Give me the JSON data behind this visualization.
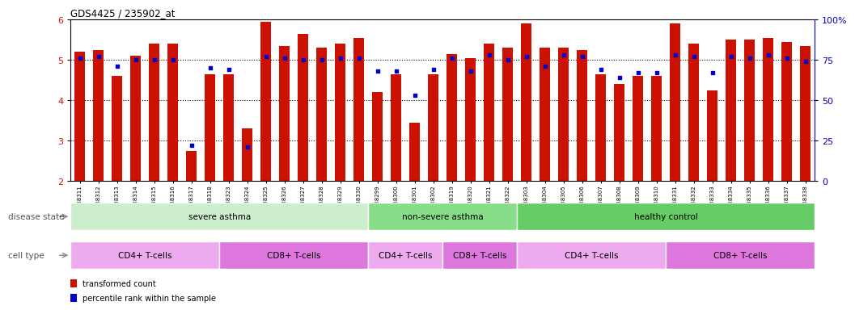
{
  "title": "GDS4425 / 235902_at",
  "sample_labels": [
    "GSM788311",
    "GSM788312",
    "GSM788313",
    "GSM788314",
    "GSM788315",
    "GSM788316",
    "GSM788317",
    "GSM788318",
    "GSM788323",
    "GSM788324",
    "GSM788325",
    "GSM788326",
    "GSM788327",
    "GSM788328",
    "GSM788329",
    "GSM788330",
    "GSM788299",
    "GSM788300",
    "GSM788301",
    "GSM788302",
    "GSM788319",
    "GSM788320",
    "GSM788321",
    "GSM788322",
    "GSM788303",
    "GSM788304",
    "GSM788305",
    "GSM788306",
    "GSM788307",
    "GSM788308",
    "GSM788309",
    "GSM788310",
    "GSM788331",
    "GSM788332",
    "GSM788333",
    "GSM788334",
    "GSM788335",
    "GSM788336",
    "GSM788337",
    "GSM788338"
  ],
  "bar_values": [
    5.2,
    5.25,
    4.6,
    5.1,
    5.4,
    5.4,
    2.75,
    4.65,
    4.65,
    3.3,
    5.95,
    5.35,
    5.65,
    5.3,
    5.4,
    5.55,
    4.2,
    4.65,
    3.45,
    4.65,
    5.15,
    5.05,
    5.4,
    5.3,
    5.9,
    5.3,
    5.3,
    5.25,
    4.65,
    4.4,
    4.6,
    4.6,
    5.9,
    5.4,
    4.25,
    5.5,
    5.5,
    5.55,
    5.45,
    5.35
  ],
  "dot_values": [
    76,
    77,
    71,
    75,
    75,
    75,
    22,
    70,
    69,
    21,
    77,
    76,
    75,
    75,
    76,
    76,
    68,
    68,
    53,
    69,
    76,
    68,
    78,
    75,
    77,
    71,
    78,
    77,
    69,
    64,
    67,
    67,
    78,
    77,
    67,
    77,
    76,
    78,
    76,
    74
  ],
  "ylim_left": [
    2,
    6
  ],
  "ylim_right": [
    0,
    100
  ],
  "yticks_left": [
    2,
    3,
    4,
    5,
    6
  ],
  "yticks_right": [
    0,
    25,
    50,
    75,
    100
  ],
  "bar_color": "#cc1100",
  "dot_color": "#0000cc",
  "disease_groups": [
    {
      "label": "severe asthma",
      "start": 0,
      "end": 16,
      "color": "#cceecc"
    },
    {
      "label": "non-severe asthma",
      "start": 16,
      "end": 24,
      "color": "#88dd88"
    },
    {
      "label": "healthy control",
      "start": 24,
      "end": 40,
      "color": "#66cc66"
    }
  ],
  "cell_groups": [
    {
      "label": "CD4+ T-cells",
      "start": 0,
      "end": 8,
      "color": "#eeaaee"
    },
    {
      "label": "CD8+ T-cells",
      "start": 8,
      "end": 16,
      "color": "#dd77dd"
    },
    {
      "label": "CD4+ T-cells",
      "start": 16,
      "end": 20,
      "color": "#eeaaee"
    },
    {
      "label": "CD8+ T-cells",
      "start": 20,
      "end": 24,
      "color": "#dd77dd"
    },
    {
      "label": "CD4+ T-cells",
      "start": 24,
      "end": 32,
      "color": "#eeaaee"
    },
    {
      "label": "CD8+ T-cells",
      "start": 32,
      "end": 40,
      "color": "#dd77dd"
    }
  ],
  "disease_label": "disease state",
  "cell_label": "cell type",
  "legend_bar_label": "transformed count",
  "legend_dot_label": "percentile rank within the sample",
  "bg_color": "#ffffff",
  "grid_dotted_vals": [
    3,
    4,
    5
  ]
}
